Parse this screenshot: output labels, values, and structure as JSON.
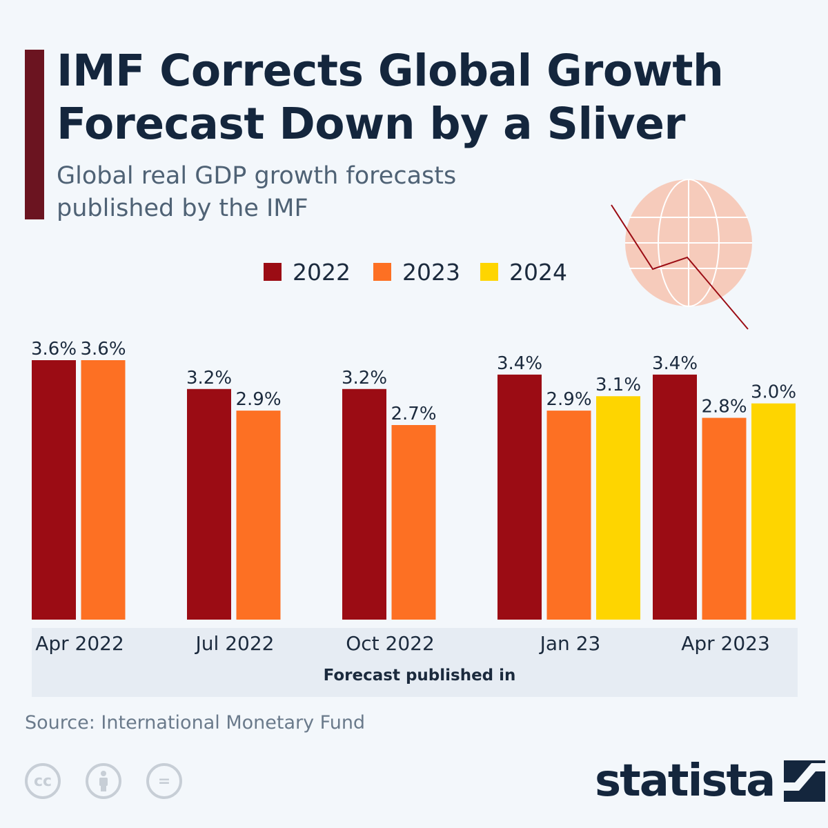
{
  "title": {
    "line1": "IMF Corrects Global Growth",
    "line2": "Forecast Down by a Sliver"
  },
  "subtitle": {
    "line1": "Global real GDP growth forecasts",
    "line2": "published by the IMF"
  },
  "legend": [
    {
      "label": "2022",
      "color": "#9b0c14"
    },
    {
      "label": "2023",
      "color": "#fd7023"
    },
    {
      "label": "2024",
      "color": "#fed500"
    }
  ],
  "chart_data": {
    "type": "bar",
    "title": "IMF Corrects Global Growth Forecast Down by a Sliver",
    "subtitle": "Global real GDP growth forecasts published by the IMF",
    "xlabel": "Forecast published in",
    "ylabel": "",
    "ylim": [
      0,
      3.6
    ],
    "grid": false,
    "legend_position": "top-center",
    "categories": [
      "Apr 2022",
      "Jul 2022",
      "Oct 2022",
      "Jan 23",
      "Apr 2023"
    ],
    "series": [
      {
        "name": "2022",
        "color": "#9b0c14",
        "values": [
          3.6,
          3.2,
          3.2,
          3.4,
          3.4
        ],
        "labels": [
          "3.6%",
          "3.2%",
          "3.2%",
          "3.4%",
          "3.4%"
        ]
      },
      {
        "name": "2023",
        "color": "#fd7023",
        "values": [
          3.6,
          2.9,
          2.7,
          2.9,
          2.8
        ],
        "labels": [
          "3.6%",
          "2.9%",
          "2.7%",
          "2.9%",
          "2.8%"
        ]
      },
      {
        "name": "2024",
        "color": "#fed500",
        "values": [
          null,
          null,
          null,
          3.1,
          3.0
        ],
        "labels": [
          "",
          "",
          "",
          "3.1%",
          "3.0%"
        ]
      }
    ]
  },
  "source": "Source: International Monetary Fund",
  "brand": "statista",
  "license_icons": [
    "cc-icon",
    "attribution-icon",
    "no-derivatives-icon"
  ],
  "license_glyphs": {
    "cc": "cc",
    "nd": "="
  }
}
